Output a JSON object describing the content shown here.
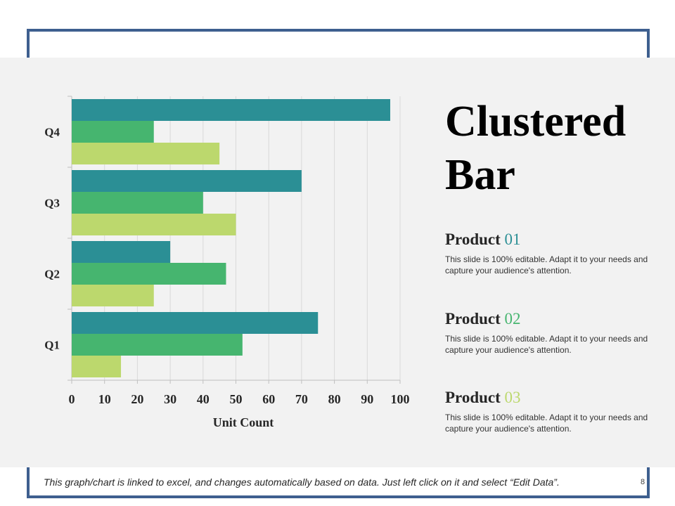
{
  "slide": {
    "title": "Clustered Bar",
    "footer_note": "This graph/chart is linked to excel, and changes automatically based on data. Just left click on it and select “Edit Data”.",
    "page_number": "8"
  },
  "products": [
    {
      "label": "Product",
      "number": "01",
      "color": "#2b8f95",
      "description": "This slide is 100% editable. Adapt it to your needs and capture your audience's attention."
    },
    {
      "label": "Product",
      "number": "02",
      "color": "#46b56f",
      "description": "This slide is 100% editable. Adapt it to your needs and capture your audience's attention."
    },
    {
      "label": "Product",
      "number": "03",
      "color": "#bcd86d",
      "description": "This slide is 100% editable. Adapt it to your needs and capture your audience's attention."
    }
  ],
  "colors": {
    "frame": "#3e5f8f",
    "panel": "#f2f2f2"
  },
  "chart_data": {
    "type": "bar",
    "orientation": "horizontal",
    "categories": [
      "Q1",
      "Q2",
      "Q3",
      "Q4"
    ],
    "series": [
      {
        "name": "Product 01",
        "color": "#2b8f95",
        "values": [
          75,
          30,
          70,
          97
        ]
      },
      {
        "name": "Product 02",
        "color": "#46b56f",
        "values": [
          52,
          47,
          40,
          25
        ]
      },
      {
        "name": "Product 03",
        "color": "#bcd86d",
        "values": [
          15,
          25,
          50,
          45
        ]
      }
    ],
    "xlabel": "Unit Count",
    "ylabel": "",
    "xlim": [
      0,
      100
    ],
    "xticks": [
      0,
      10,
      20,
      30,
      40,
      50,
      60,
      70,
      80,
      90,
      100
    ],
    "grid": true,
    "legend": "none"
  }
}
